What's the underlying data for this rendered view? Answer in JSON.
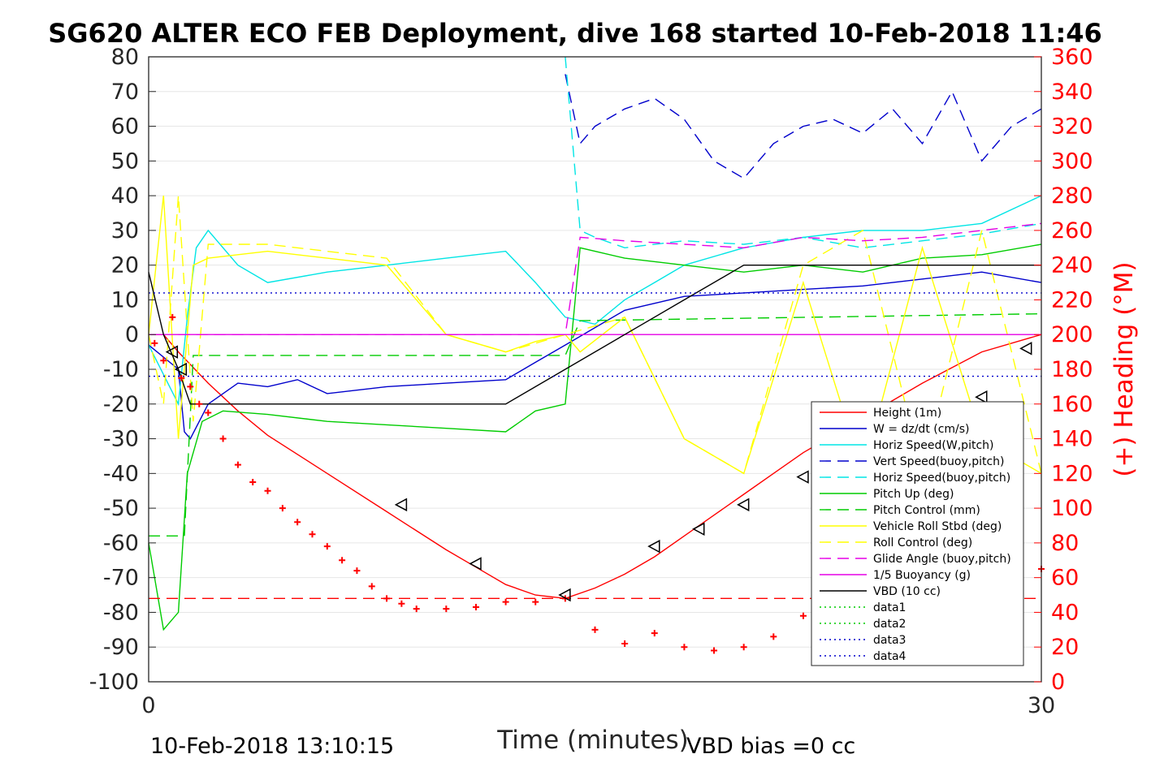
{
  "chart_data": {
    "type": "line",
    "title": "SG620 ALTER ECO FEB Deployment, dive 168 started 10-Feb-2018 11:46",
    "xlabel": "Time (minutes)",
    "ylabel_right": "(+) Heading (°M)",
    "xlim": [
      0,
      30
    ],
    "ylim": [
      -100,
      80
    ],
    "ylim_right": [
      0,
      360
    ],
    "x_ticks": [
      "0",
      "30"
    ],
    "y_ticks": [
      "80",
      "70",
      "60",
      "50",
      "40",
      "30",
      "20",
      "10",
      "0",
      "-10",
      "-20",
      "-30",
      "-40",
      "-50",
      "-60",
      "-70",
      "-80",
      "-90",
      "-100"
    ],
    "y_right_ticks": [
      "360",
      "340",
      "320",
      "300",
      "280",
      "260",
      "240",
      "220",
      "200",
      "180",
      "160",
      "140",
      "120",
      "100",
      "80",
      "60",
      "40",
      "20",
      "0"
    ],
    "grid": true,
    "legend_position": "right",
    "footer_left": "10-Feb-2018 13:10:15",
    "footer_right": "VBD bias =0 cc",
    "series": [
      {
        "name": "Height (1m)",
        "color": "#ff0000",
        "style": "solid",
        "x": [
          0,
          0.5,
          1,
          2,
          3,
          4,
          6,
          8,
          10,
          11,
          12,
          13,
          14,
          15,
          16,
          17,
          18,
          19,
          20,
          21,
          22,
          24,
          26,
          28,
          30
        ],
        "y": [
          0,
          0,
          -5,
          -14,
          -22,
          -29,
          -40,
          -51,
          -62,
          -67,
          -72,
          -75,
          -76,
          -73,
          -69,
          -64,
          -58,
          -52,
          -46,
          -40,
          -34,
          -24,
          -14,
          -5,
          0
        ]
      },
      {
        "name": "W = dz/dt (cm/s)",
        "color": "#0000cc",
        "style": "solid",
        "x": [
          0,
          1,
          1.2,
          1.4,
          2,
          3,
          4,
          5,
          6,
          8,
          10,
          12,
          13,
          14,
          16,
          18,
          20,
          22,
          24,
          26,
          28,
          30
        ],
        "y": [
          -3,
          -10,
          -28,
          -30,
          -20,
          -14,
          -15,
          -13,
          -17,
          -15,
          -14,
          -13,
          -8,
          -3,
          7,
          11,
          12,
          13,
          14,
          16,
          18,
          15
        ]
      },
      {
        "name": "Horiz Speed(W,pitch)",
        "color": "#00e5e5",
        "style": "solid",
        "x": [
          0,
          1,
          1.3,
          1.6,
          2,
          3,
          4,
          6,
          8,
          10,
          12,
          13,
          14,
          15,
          16,
          17,
          18,
          20,
          22,
          24,
          26,
          28,
          30
        ],
        "y": [
          -3,
          -20,
          5,
          25,
          30,
          20,
          15,
          18,
          20,
          22,
          24,
          15,
          5,
          3,
          10,
          15,
          20,
          25,
          28,
          30,
          30,
          32,
          40
        ]
      },
      {
        "name": "Vert Speed(buoy,pitch)",
        "color": "#0000cc",
        "style": "dashed",
        "x": [
          14,
          14.5,
          15,
          16,
          17,
          18,
          19,
          20,
          21,
          22,
          23,
          24,
          25,
          26,
          27,
          28,
          29,
          30
        ],
        "y": [
          75,
          55,
          60,
          65,
          68,
          62,
          50,
          45,
          55,
          60,
          62,
          58,
          65,
          55,
          70,
          50,
          60,
          65
        ]
      },
      {
        "name": "Horiz Speed(buoy,pitch)",
        "color": "#00e5e5",
        "style": "dashed",
        "x": [
          14,
          14.5,
          15,
          16,
          18,
          20,
          22,
          24,
          26,
          28,
          30
        ],
        "y": [
          80,
          30,
          28,
          25,
          27,
          26,
          28,
          25,
          27,
          29,
          32
        ]
      },
      {
        "name": "Pitch Up (deg)",
        "color": "#00cc00",
        "style": "solid",
        "x": [
          0,
          0.5,
          1,
          1.3,
          1.8,
          2.5,
          4,
          6,
          8,
          10,
          12,
          13,
          14,
          14.5,
          16,
          18,
          20,
          22,
          24,
          26,
          28,
          30
        ],
        "y": [
          -60,
          -85,
          -80,
          -40,
          -25,
          -22,
          -23,
          -25,
          -26,
          -27,
          -28,
          -22,
          -20,
          25,
          22,
          20,
          18,
          20,
          18,
          22,
          23,
          26
        ]
      },
      {
        "name": "Pitch Control (mm)",
        "color": "#00cc00",
        "style": "dashed",
        "x": [
          0,
          1.2,
          1.5,
          14,
          14.5,
          30
        ],
        "y": [
          -58,
          -58,
          -6,
          -6,
          4,
          6
        ]
      },
      {
        "name": "Vehicle Roll Stbd (deg)",
        "color": "#ffff00",
        "style": "solid",
        "x": [
          0,
          0.5,
          1,
          1.5,
          2,
          4,
          6,
          8,
          10,
          12,
          13,
          14,
          14.5,
          16,
          18,
          20,
          22,
          24,
          26,
          28,
          30
        ],
        "y": [
          0,
          40,
          -30,
          20,
          22,
          24,
          22,
          20,
          0,
          -5,
          -2,
          0,
          -5,
          5,
          -30,
          -40,
          15,
          -40,
          25,
          -30,
          -40
        ]
      },
      {
        "name": "Roll Control (deg)",
        "color": "#ffff00",
        "style": "dashed",
        "x": [
          0,
          0.5,
          1,
          1.5,
          2,
          4,
          6,
          8,
          10,
          12,
          14,
          16,
          18,
          20,
          22,
          24,
          26,
          28,
          30
        ],
        "y": [
          0,
          -20,
          40,
          -25,
          26,
          26,
          24,
          22,
          0,
          -5,
          0,
          5,
          -30,
          -40,
          20,
          30,
          -40,
          30,
          -40
        ]
      },
      {
        "name": "Glide Angle (buoy,pitch)",
        "color": "#e600e6",
        "style": "dashed",
        "x": [
          1,
          14,
          14.5,
          16,
          18,
          20,
          22,
          24,
          26,
          28,
          30
        ],
        "y": [
          0,
          0,
          28,
          27,
          26,
          25,
          28,
          27,
          28,
          30,
          32
        ]
      },
      {
        "name": "1/5 Buoyancy (g)",
        "color": "#e600e6",
        "style": "solid",
        "x": [
          0,
          30
        ],
        "y": [
          0,
          0
        ]
      },
      {
        "name": "VBD (10 cc)",
        "color": "#000000",
        "style": "solid",
        "x": [
          0,
          0.5,
          1,
          1.4,
          8,
          10,
          12,
          14,
          16,
          18,
          20,
          22,
          24,
          26,
          28,
          30
        ],
        "y": [
          18,
          0,
          -10,
          -20,
          -20,
          -20,
          -20,
          -10,
          0,
          10,
          20,
          20,
          20,
          20,
          20,
          20
        ]
      },
      {
        "name": "data1",
        "color": "#00cc00",
        "style": "dotted",
        "x": [],
        "y": []
      },
      {
        "name": "data2",
        "color": "#00cc00",
        "style": "dotted",
        "x": [],
        "y": []
      },
      {
        "name": "data3",
        "color": "#0000cc",
        "style": "dotted",
        "x": [
          0,
          30
        ],
        "y": [
          12,
          12
        ]
      },
      {
        "name": "data4",
        "color": "#0000cc",
        "style": "dotted",
        "x": [
          0,
          30
        ],
        "y": [
          -12,
          -12
        ]
      }
    ],
    "extra_series": [
      {
        "id": "heading-ref",
        "color": "#ff0000",
        "style": "dashed",
        "axis": "right",
        "x": [
          0,
          30
        ],
        "y": [
          48,
          48
        ]
      },
      {
        "id": "heading-markers",
        "color": "#ff0000",
        "style": "plus",
        "axis": "right",
        "x": [
          0.2,
          0.5,
          0.8,
          1.1,
          1.4,
          1.7,
          2,
          2.5,
          3,
          3.5,
          4,
          4.5,
          5,
          5.5,
          6,
          6.5,
          7,
          7.5,
          8,
          8.5,
          9,
          10,
          11,
          12,
          13,
          14,
          15,
          16,
          17,
          18,
          19,
          20,
          21,
          22,
          23,
          24,
          25,
          26,
          27,
          28,
          29,
          30
        ],
        "y": [
          195,
          185,
          210,
          175,
          170,
          160,
          155,
          140,
          125,
          115,
          110,
          100,
          92,
          85,
          78,
          70,
          64,
          55,
          48,
          45,
          42,
          42,
          43,
          46,
          46,
          48,
          30,
          22,
          28,
          20,
          18,
          20,
          26,
          38,
          78,
          82,
          70,
          36,
          30,
          45,
          60,
          65
        ]
      },
      {
        "id": "turn-markers",
        "color": "#000000",
        "style": "triangle",
        "axis": "left",
        "x": [
          0.8,
          1.1,
          8.5,
          11,
          14,
          17,
          18.5,
          20,
          22,
          24,
          26,
          28,
          29.5
        ],
        "y": [
          -5,
          -10,
          -49,
          -66,
          -75,
          -61,
          -56,
          -49,
          -41,
          -35,
          -25,
          -18,
          -4
        ]
      }
    ]
  }
}
